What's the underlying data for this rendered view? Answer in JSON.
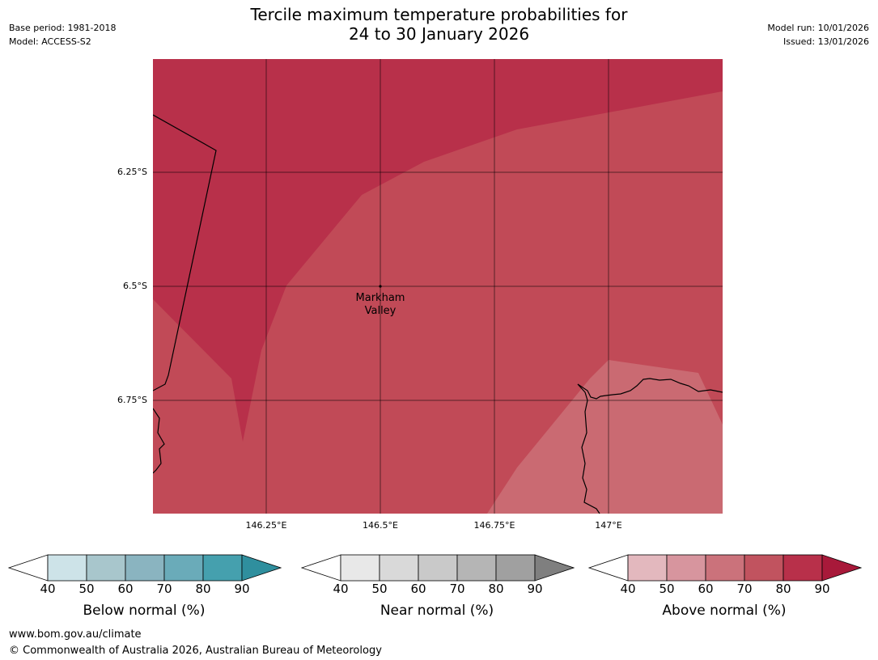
{
  "title": {
    "line1": "Tercile maximum temperature probabilities for",
    "line2": "24 to 30 January 2026"
  },
  "meta_left": {
    "base_period": "Base period: 1981-2018",
    "model": "Model: ACCESS-S2"
  },
  "meta_right": {
    "model_run": "Model run: 10/01/2026",
    "issued": "Issued: 13/01/2026"
  },
  "map": {
    "lat_labels": [
      "6.25°S",
      "6.5°S",
      "6.75°S"
    ],
    "lon_labels": [
      "146.25°E",
      "146.5°E",
      "146.75°E",
      "147°E"
    ],
    "place": {
      "name_line1": "Markham",
      "name_line2": "Valley"
    },
    "colors": {
      "above_90": "#b8304a",
      "above_80": "#c14a57",
      "above_70": "#ca6a72",
      "borders": "#000000"
    }
  },
  "colorbars": [
    {
      "label": "Below normal (%)",
      "ticks": [
        "40",
        "50",
        "60",
        "70",
        "80",
        "90"
      ],
      "colors": [
        "#cde3e8",
        "#a8c6cc",
        "#8ab4c0",
        "#6aabb9",
        "#45a0ae",
        "#2f8f9e"
      ]
    },
    {
      "label": "Near normal (%)",
      "ticks": [
        "40",
        "50",
        "60",
        "70",
        "80",
        "90"
      ],
      "colors": [
        "#e8e8e8",
        "#d9d9d9",
        "#c9c9c9",
        "#b5b5b5",
        "#a0a0a0",
        "#7f7f7f"
      ]
    },
    {
      "label": "Above normal (%)",
      "ticks": [
        "40",
        "50",
        "60",
        "70",
        "80",
        "90"
      ],
      "colors": [
        "#e3b8be",
        "#d7959e",
        "#cb727b",
        "#c1535f",
        "#b8304a",
        "#a8193a"
      ]
    }
  ],
  "footer": {
    "url": "www.bom.gov.au/climate",
    "copyright": "© Commonwealth of Australia 2026, Australian Bureau of Meteorology"
  }
}
